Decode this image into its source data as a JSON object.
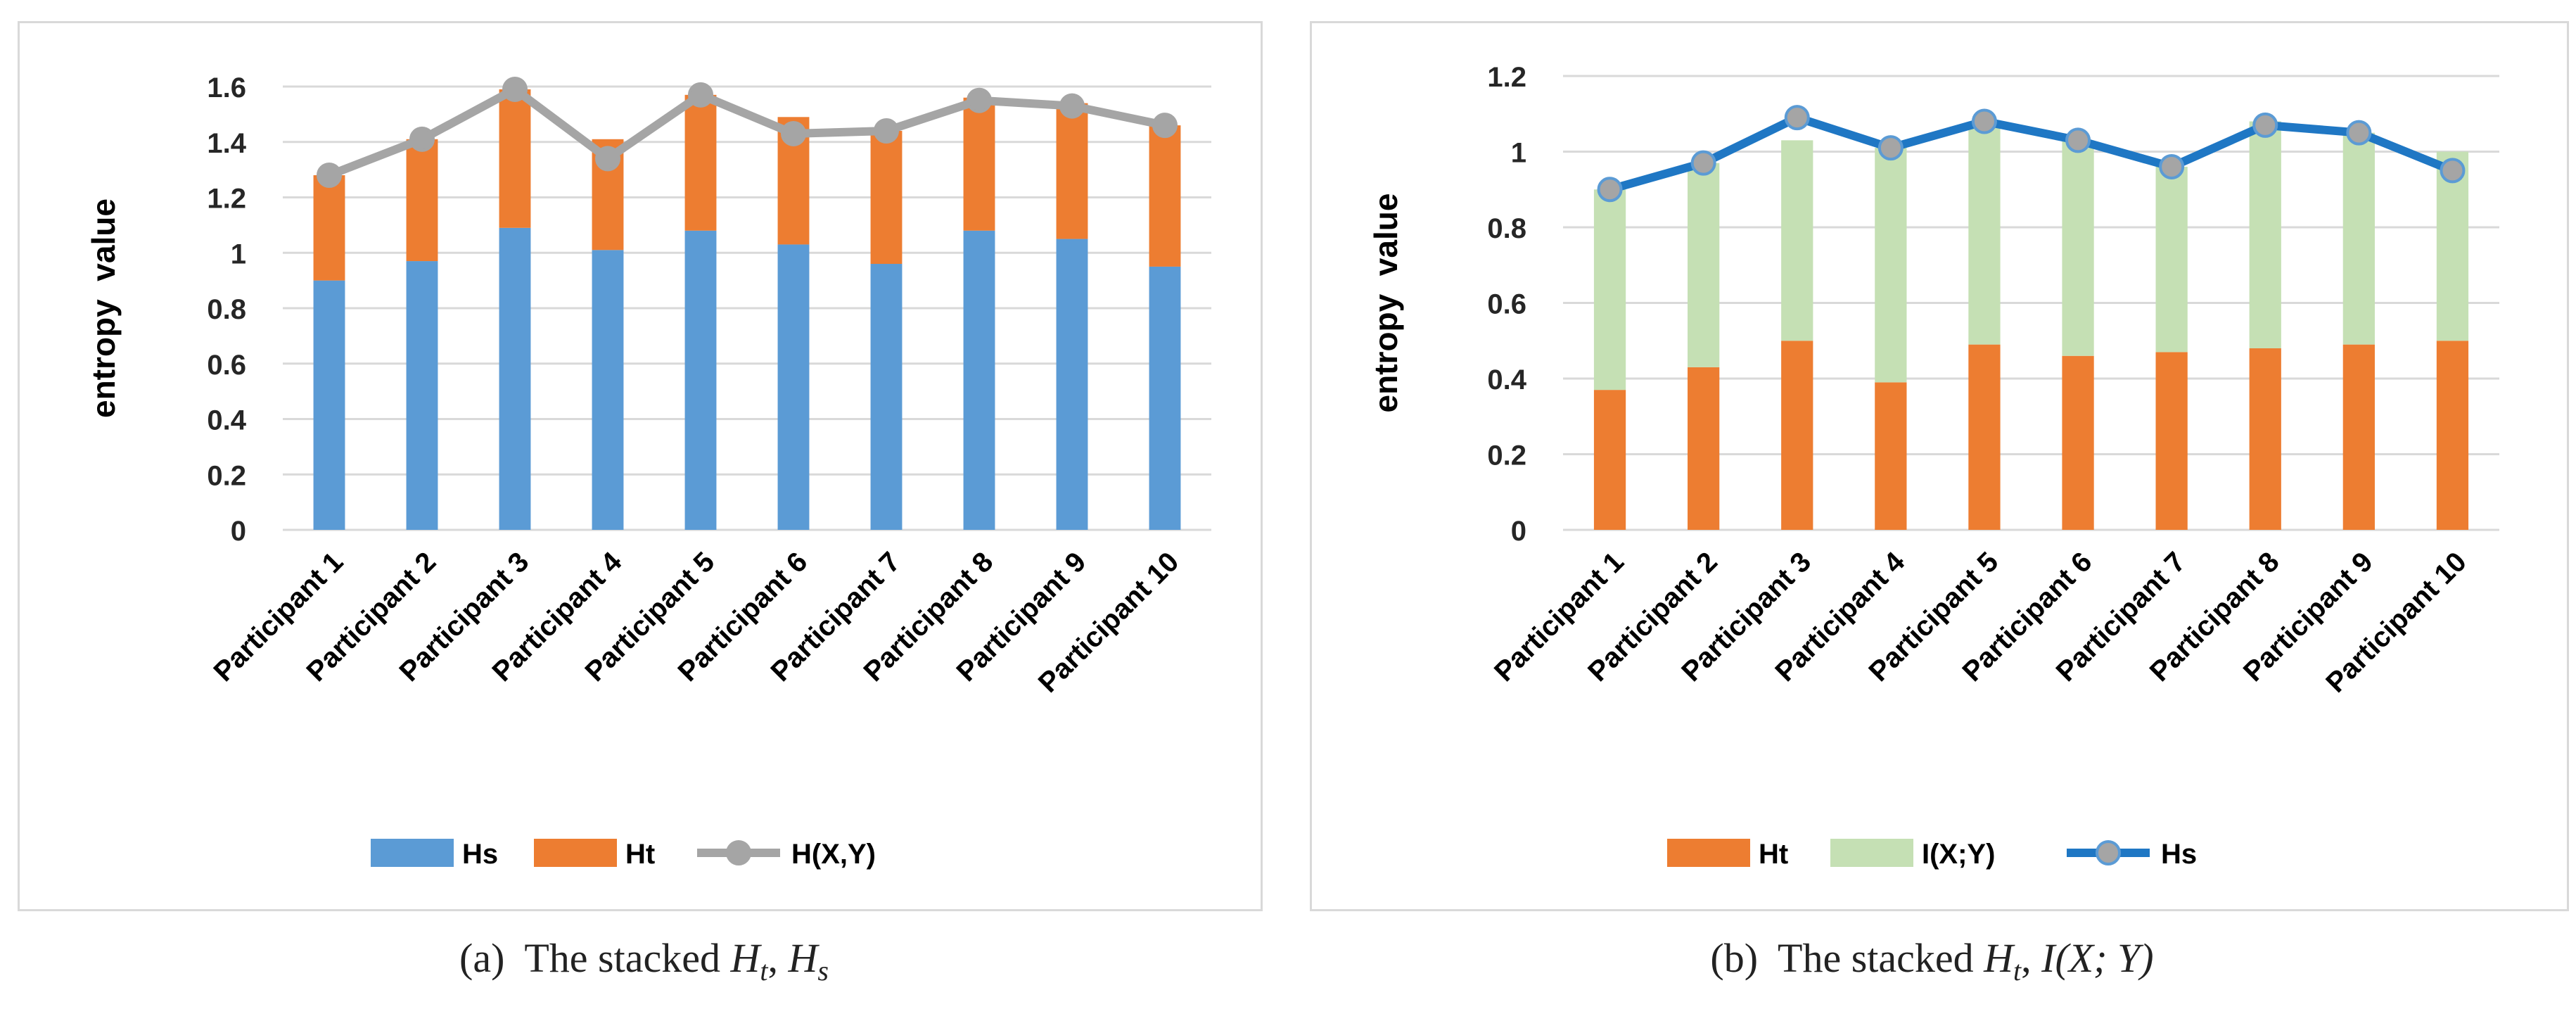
{
  "chart_data": [
    {
      "type": "bar",
      "stacked": true,
      "categories": [
        "Participant 1",
        "Participant 2",
        "Participant 3",
        "Participant 4",
        "Participant 5",
        "Participant 6",
        "Participant 7",
        "Participant 8",
        "Participant 9",
        "Participant 10"
      ],
      "series": [
        {
          "name": "Hs",
          "kind": "bar",
          "color": "#5b9bd5",
          "values": [
            0.9,
            0.97,
            1.09,
            1.01,
            1.08,
            1.03,
            0.96,
            1.08,
            1.05,
            0.95
          ]
        },
        {
          "name": "Ht",
          "kind": "bar",
          "color": "#ed7d31",
          "values": [
            0.38,
            0.44,
            0.5,
            0.4,
            0.49,
            0.46,
            0.48,
            0.48,
            0.49,
            0.51
          ]
        },
        {
          "name": "H(X,Y)",
          "kind": "line",
          "color": "#a5a5a5",
          "values": [
            1.28,
            1.41,
            1.59,
            1.34,
            1.57,
            1.43,
            1.44,
            1.55,
            1.53,
            1.46
          ]
        }
      ],
      "ylabel": "entropy  value",
      "xlabel": "",
      "ylim": [
        0,
        1.6
      ],
      "yticks": [
        "0",
        "0.2",
        "0.4",
        "0.6",
        "0.8",
        "1",
        "1.2",
        "1.4",
        "1.6"
      ],
      "grid": true,
      "legend": "bottom",
      "caption": {
        "label": "(a)",
        "text": "The stacked",
        "sym1": "H",
        "sub1": "t",
        "sym2": "H",
        "sub2": "s"
      }
    },
    {
      "type": "bar",
      "stacked": true,
      "categories": [
        "Participant 1",
        "Participant 2",
        "Participant 3",
        "Participant 4",
        "Participant 5",
        "Participant 6",
        "Participant 7",
        "Participant 8",
        "Participant 9",
        "Participant 10"
      ],
      "series": [
        {
          "name": "Ht",
          "kind": "bar",
          "color": "#ed7d31",
          "values": [
            0.37,
            0.43,
            0.5,
            0.39,
            0.49,
            0.46,
            0.47,
            0.48,
            0.49,
            0.5
          ]
        },
        {
          "name": "I(X;Y)",
          "kind": "bar",
          "color": "#c5e0b4",
          "values": [
            0.53,
            0.54,
            0.53,
            0.62,
            0.59,
            0.57,
            0.49,
            0.6,
            0.56,
            0.5
          ]
        },
        {
          "name": "Hs",
          "kind": "line",
          "color": "#1f77c4",
          "values": [
            0.9,
            0.97,
            1.09,
            1.01,
            1.08,
            1.03,
            0.96,
            1.07,
            1.05,
            0.95
          ]
        }
      ],
      "ylabel": "entropy  value",
      "xlabel": "",
      "ylim": [
        0,
        1.2
      ],
      "yticks": [
        "0",
        "0.2",
        "0.4",
        "0.6",
        "0.8",
        "1",
        "1.2"
      ],
      "grid": true,
      "legend": "bottom",
      "caption": {
        "label": "(b)",
        "text": "The stacked",
        "sym1": "H",
        "sub1": "t",
        "sym2": "I(X; Y)",
        "sub2": ""
      }
    }
  ]
}
